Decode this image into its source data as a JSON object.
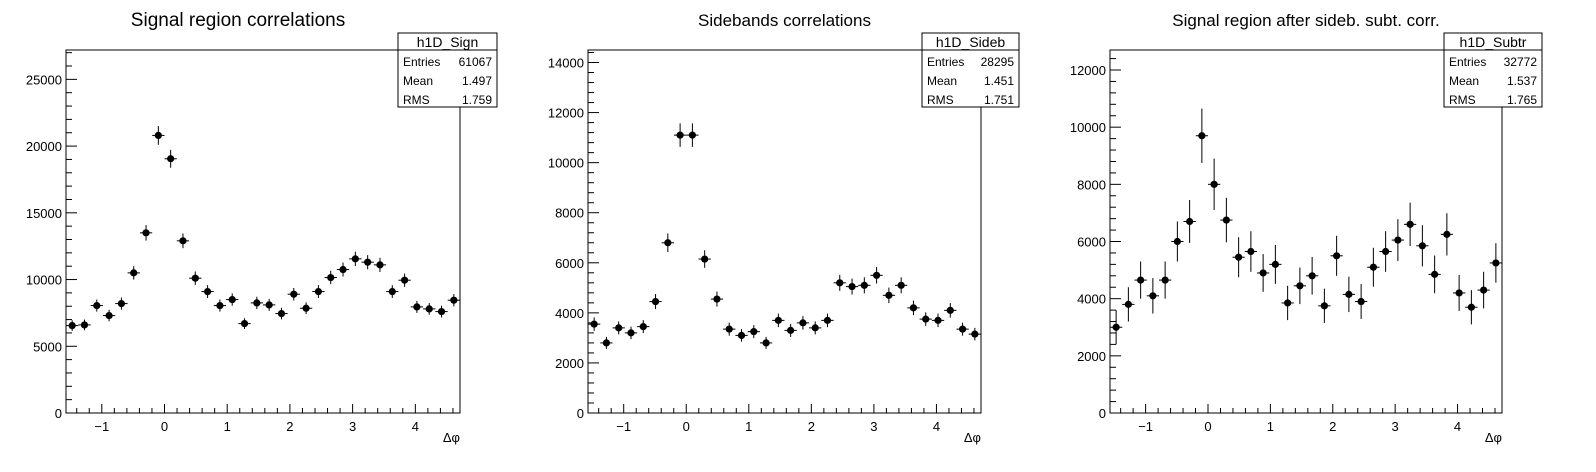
{
  "chart_data": [
    {
      "type": "scatter",
      "title": "Signal region correlations",
      "xlabel": "Δφ",
      "ylabel": "",
      "xlim": [
        -1.5708,
        4.7124
      ],
      "ylim": [
        0,
        27200
      ],
      "xticks": [
        -1,
        0,
        1,
        2,
        3,
        4
      ],
      "yticks": [
        0,
        5000,
        10000,
        15000,
        20000,
        25000
      ],
      "stats": {
        "name": "h1D_Sign",
        "rows": [
          {
            "label": "Entries",
            "value": "61067"
          },
          {
            "label": "Mean",
            "value": "1.497"
          },
          {
            "label": "RMS",
            "value": "1.759"
          }
        ]
      },
      "series": [
        {
          "x": [
            -1.4726,
            -1.2763,
            -1.0799,
            -0.8836,
            -0.6872,
            -0.4909,
            -0.2945,
            -0.0982,
            0.0982,
            0.2945,
            0.4909,
            0.6872,
            0.8836,
            1.0799,
            1.2763,
            1.4726,
            1.669,
            1.8653,
            2.0617,
            2.258,
            2.4544,
            2.6507,
            2.8471,
            3.0434,
            3.2398,
            3.4361,
            3.6325,
            3.8288,
            4.0252,
            4.2215,
            4.4179,
            4.6142
          ],
          "y": [
            6550,
            6600,
            8050,
            7300,
            8200,
            10500,
            13500,
            20800,
            19050,
            12900,
            10100,
            9100,
            8050,
            8500,
            6700,
            8250,
            8100,
            7450,
            8900,
            7850,
            9100,
            10150,
            10750,
            11550,
            11300,
            11100,
            9100,
            9950,
            7950,
            7800,
            7600,
            8450
          ],
          "err": [
            400,
            400,
            450,
            430,
            450,
            500,
            580,
            700,
            670,
            550,
            500,
            480,
            450,
            460,
            400,
            460,
            450,
            430,
            470,
            440,
            480,
            500,
            520,
            540,
            530,
            530,
            480,
            500,
            450,
            440,
            440,
            460
          ]
        }
      ]
    },
    {
      "type": "scatter",
      "title": "Sidebands correlations",
      "xlabel": "Δφ",
      "ylabel": "",
      "xlim": [
        -1.5708,
        4.7124
      ],
      "ylim": [
        0,
        14500
      ],
      "xticks": [
        -1,
        0,
        1,
        2,
        3,
        4
      ],
      "yticks": [
        0,
        2000,
        4000,
        6000,
        8000,
        10000,
        12000,
        14000
      ],
      "stats": {
        "name": "h1D_Sideb",
        "rows": [
          {
            "label": "Entries",
            "value": "28295"
          },
          {
            "label": "Mean",
            "value": "1.451"
          },
          {
            "label": "RMS",
            "value": "1.751"
          }
        ]
      },
      "series": [
        {
          "x": [
            -1.4726,
            -1.2763,
            -1.0799,
            -0.8836,
            -0.6872,
            -0.4909,
            -0.2945,
            -0.0982,
            0.0982,
            0.2945,
            0.4909,
            0.6872,
            0.8836,
            1.0799,
            1.2763,
            1.4726,
            1.669,
            1.8653,
            2.0617,
            2.258,
            2.4544,
            2.6507,
            2.8471,
            3.0434,
            3.2398,
            3.4361,
            3.6325,
            3.8288,
            4.0252,
            4.2215,
            4.4179,
            4.6142
          ],
          "y": [
            3550,
            2800,
            3400,
            3200,
            3450,
            4450,
            6800,
            11100,
            11100,
            6150,
            4550,
            3350,
            3100,
            3250,
            2800,
            3700,
            3300,
            3600,
            3400,
            3700,
            5200,
            5050,
            5100,
            5500,
            4700,
            5100,
            4200,
            3750,
            3700,
            4100,
            3350,
            3150
          ],
          "err": [
            270,
            240,
            260,
            250,
            260,
            300,
            370,
            470,
            470,
            350,
            300,
            260,
            250,
            260,
            240,
            270,
            260,
            270,
            260,
            270,
            320,
            320,
            320,
            330,
            310,
            320,
            290,
            270,
            270,
            290,
            260,
            250
          ]
        }
      ]
    },
    {
      "type": "scatter",
      "title": "Signal region after sideb. subt. corr.",
      "xlabel": "Δφ",
      "ylabel": "",
      "xlim": [
        -1.5708,
        4.7124
      ],
      "ylim": [
        0,
        12700
      ],
      "xticks": [
        -1,
        0,
        1,
        2,
        3,
        4
      ],
      "yticks": [
        0,
        2000,
        4000,
        6000,
        8000,
        10000,
        12000
      ],
      "stats": {
        "name": "h1D_Subtr",
        "rows": [
          {
            "label": "Entries",
            "value": "32772"
          },
          {
            "label": "Mean",
            "value": "1.537"
          },
          {
            "label": "RMS",
            "value": "1.765"
          }
        ]
      },
      "series": [
        {
          "x": [
            -1.4726,
            -1.2763,
            -1.0799,
            -0.8836,
            -0.6872,
            -0.4909,
            -0.2945,
            -0.0982,
            0.0982,
            0.2945,
            0.4909,
            0.6872,
            0.8836,
            1.0799,
            1.2763,
            1.4726,
            1.669,
            1.8653,
            2.0617,
            2.258,
            2.4544,
            2.6507,
            2.8471,
            3.0434,
            3.2398,
            3.4361,
            3.6325,
            3.8288,
            4.0252,
            4.2215,
            4.4179,
            4.6142
          ],
          "y": [
            3000,
            3800,
            4650,
            4100,
            4650,
            6000,
            6700,
            9700,
            8000,
            6750,
            5450,
            5650,
            4900,
            5200,
            3850,
            4450,
            4800,
            3750,
            5500,
            4150,
            3900,
            5100,
            5650,
            6050,
            6600,
            5850,
            4850,
            6250,
            4200,
            3700,
            4300,
            5250
          ],
          "err": [
            600,
            600,
            650,
            620,
            650,
            700,
            750,
            950,
            900,
            780,
            700,
            710,
            660,
            680,
            600,
            640,
            660,
            600,
            700,
            620,
            610,
            680,
            710,
            730,
            760,
            720,
            660,
            740,
            630,
            600,
            640,
            690
          ]
        }
      ]
    }
  ]
}
